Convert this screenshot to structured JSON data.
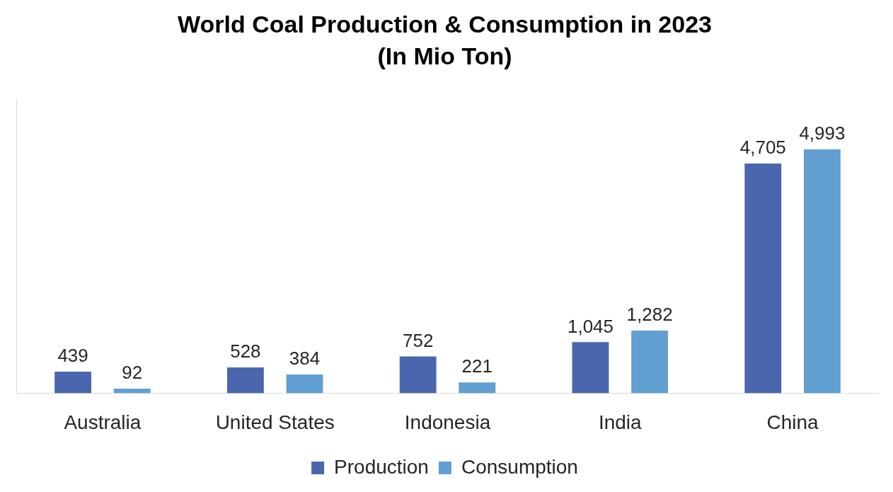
{
  "chart_data": {
    "type": "bar",
    "title": "World Coal Production & Consumption in 2023",
    "subtitle": "(In Mio Ton)",
    "categories": [
      "Australia",
      "United States",
      "Indonesia",
      "India",
      "China"
    ],
    "series": [
      {
        "name": "Production",
        "color": "#4a66ae",
        "values": [
          439,
          528,
          752,
          1045,
          4705
        ],
        "value_labels": [
          "439",
          "528",
          "752",
          "1,045",
          "4,705"
        ]
      },
      {
        "name": "Consumption",
        "color": "#629fd2",
        "values": [
          92,
          384,
          221,
          1282,
          4993
        ],
        "value_labels": [
          "92",
          "384",
          "221",
          "1,282",
          "4,993"
        ]
      }
    ],
    "ylim": [
      0,
      6000
    ],
    "grid": false,
    "legend": "bottom",
    "data_labels": true,
    "tick_labels": "x"
  }
}
